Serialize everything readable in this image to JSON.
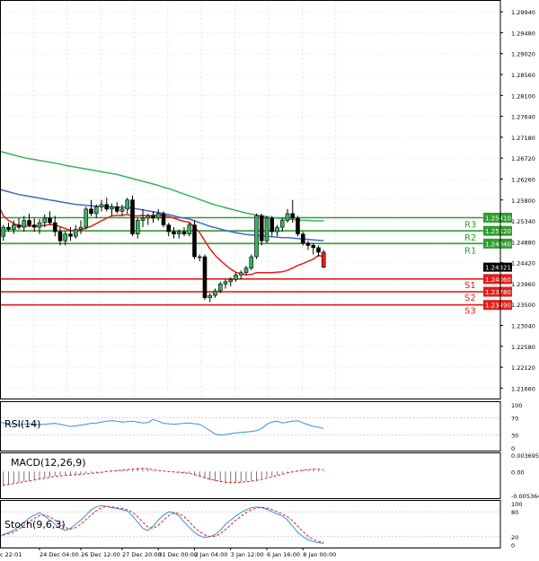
{
  "chart_data": {
    "type": "candlestick",
    "symbol_timeframe": "H4",
    "price_axis": {
      "range": [
        1.2143,
        1.302
      ],
      "ticks": [
        "1.29940",
        "1.29480",
        "1.29020",
        "1.28560",
        "1.28100",
        "1.27640",
        "1.27180",
        "1.26720",
        "1.26260",
        "1.25800",
        "1.25340",
        "1.24880",
        "1.24420",
        "1.23960",
        "1.23500",
        "1.23040",
        "1.22580",
        "1.22120",
        "1.21660"
      ]
    },
    "current_price": "1.24321",
    "levels": [
      {
        "name": "R3",
        "value": 1.2541,
        "label": "1.25410",
        "color": "#2e9e2e"
      },
      {
        "name": "R2",
        "value": 1.2512,
        "label": "1.25120",
        "color": "#2e9e2e"
      },
      {
        "name": "R1",
        "value": 1.2484,
        "label": "1.24840",
        "color": "#2e9e2e"
      },
      {
        "name": "S1",
        "value": 1.2406,
        "label": "1.24060",
        "color": "#e0201b"
      },
      {
        "name": "S2",
        "value": 1.2378,
        "label": "1.23780",
        "color": "#e0201b"
      },
      {
        "name": "S3",
        "value": 1.2349,
        "label": "1.23490",
        "color": "#e0201b"
      }
    ],
    "candles": [
      [
        1.2565,
        1.2568,
        1.2495,
        1.25
      ],
      [
        1.25,
        1.2525,
        1.249,
        1.252
      ],
      [
        1.252,
        1.253,
        1.251,
        1.2515
      ],
      [
        1.2515,
        1.2535,
        1.2505,
        1.2525
      ],
      [
        1.2525,
        1.254,
        1.2515,
        1.252
      ],
      [
        1.252,
        1.2545,
        1.251,
        1.2535
      ],
      [
        1.2535,
        1.255,
        1.252,
        1.2525
      ],
      [
        1.2525,
        1.254,
        1.251,
        1.252
      ],
      [
        1.252,
        1.2538,
        1.2505,
        1.253
      ],
      [
        1.253,
        1.2548,
        1.252,
        1.254
      ],
      [
        1.254,
        1.2555,
        1.2525,
        1.253
      ],
      [
        1.253,
        1.2545,
        1.25,
        1.251
      ],
      [
        1.251,
        1.252,
        1.248,
        1.249
      ],
      [
        1.249,
        1.2512,
        1.248,
        1.2505
      ],
      [
        1.2505,
        1.252,
        1.249,
        1.25
      ],
      [
        1.25,
        1.2525,
        1.2495,
        1.2515
      ],
      [
        1.2515,
        1.2535,
        1.2505,
        1.252
      ],
      [
        1.252,
        1.2565,
        1.2515,
        1.256
      ],
      [
        1.256,
        1.258,
        1.2545,
        1.255
      ],
      [
        1.255,
        1.257,
        1.254,
        1.2565
      ],
      [
        1.2565,
        1.258,
        1.2555,
        1.257
      ],
      [
        1.257,
        1.2585,
        1.2555,
        1.256
      ],
      [
        1.256,
        1.2572,
        1.2545,
        1.2565
      ],
      [
        1.2565,
        1.2575,
        1.255,
        1.2555
      ],
      [
        1.2555,
        1.257,
        1.2545,
        1.256
      ],
      [
        1.256,
        1.2585,
        1.255,
        1.258
      ],
      [
        1.258,
        1.259,
        1.25,
        1.2505
      ],
      [
        1.2505,
        1.254,
        1.2495,
        1.2535
      ],
      [
        1.2535,
        1.256,
        1.252,
        1.254
      ],
      [
        1.254,
        1.255,
        1.2525,
        1.2545
      ],
      [
        1.2545,
        1.2555,
        1.253,
        1.254
      ],
      [
        1.254,
        1.256,
        1.2535,
        1.255
      ],
      [
        1.255,
        1.2555,
        1.252,
        1.2525
      ],
      [
        1.2525,
        1.253,
        1.25,
        1.251
      ],
      [
        1.251,
        1.252,
        1.2495,
        1.2505
      ],
      [
        1.2505,
        1.2515,
        1.2495,
        1.251
      ],
      [
        1.251,
        1.252,
        1.25,
        1.2505
      ],
      [
        1.2505,
        1.253,
        1.25,
        1.2525
      ],
      [
        1.2525,
        1.2535,
        1.245,
        1.2455
      ],
      [
        1.2455,
        1.246,
        1.2445,
        1.2455
      ],
      [
        1.2455,
        1.246,
        1.236,
        1.2365
      ],
      [
        1.2365,
        1.2375,
        1.2355,
        1.237
      ],
      [
        1.237,
        1.2385,
        1.2365,
        1.238
      ],
      [
        1.238,
        1.24,
        1.2375,
        1.2395
      ],
      [
        1.2395,
        1.2405,
        1.2385,
        1.24
      ],
      [
        1.24,
        1.241,
        1.239,
        1.2405
      ],
      [
        1.2405,
        1.242,
        1.24,
        1.2415
      ],
      [
        1.2415,
        1.2425,
        1.2405,
        1.242
      ],
      [
        1.242,
        1.2435,
        1.2415,
        1.243
      ],
      [
        1.243,
        1.246,
        1.2425,
        1.2455
      ],
      [
        1.2455,
        1.255,
        1.245,
        1.2545
      ],
      [
        1.2545,
        1.255,
        1.248,
        1.249
      ],
      [
        1.249,
        1.2545,
        1.2485,
        1.254
      ],
      [
        1.254,
        1.2545,
        1.25,
        1.251
      ],
      [
        1.251,
        1.2525,
        1.25,
        1.252
      ],
      [
        1.252,
        1.254,
        1.251,
        1.2535
      ],
      [
        1.2535,
        1.256,
        1.253,
        1.255
      ],
      [
        1.255,
        1.258,
        1.253,
        1.254
      ],
      [
        1.254,
        1.2545,
        1.25,
        1.2505
      ],
      [
        1.2505,
        1.251,
        1.248,
        1.2485
      ],
      [
        1.2485,
        1.249,
        1.247,
        1.248
      ],
      [
        1.248,
        1.2485,
        1.246,
        1.2475
      ],
      [
        1.2475,
        1.248,
        1.2455,
        1.2465
      ],
      [
        1.2465,
        1.247,
        1.243,
        1.2432
      ]
    ],
    "moving_averages": [
      {
        "name": "MA fast",
        "color": "#e0201b",
        "values": [
          1.257,
          1.2545,
          1.2535,
          1.2528,
          1.2524,
          1.2522,
          1.2523,
          1.2522,
          1.2523,
          1.2524,
          1.2526,
          1.2525,
          1.2521,
          1.2517,
          1.2513,
          1.2513,
          1.2514,
          1.2518,
          1.2522,
          1.2528,
          1.2534,
          1.254,
          1.2545,
          1.2546,
          1.2546,
          1.2548,
          1.2545,
          1.2545,
          1.2546,
          1.2545,
          1.2546,
          1.2547,
          1.2546,
          1.2544,
          1.254,
          1.2536,
          1.2533,
          1.2531,
          1.252,
          1.2508,
          1.249,
          1.2472,
          1.2458,
          1.2447,
          1.2437,
          1.2428,
          1.2421,
          1.2417,
          1.2415,
          1.2416,
          1.242,
          1.242,
          1.242,
          1.242,
          1.2421,
          1.2422,
          1.2425,
          1.243,
          1.2436,
          1.244,
          1.2445,
          1.245,
          1.2458,
          1.2455
        ]
      },
      {
        "name": "MA medium",
        "color": "#4169c8",
        "values": [
          1.2605,
          1.2601,
          1.2598,
          1.2595,
          1.2592,
          1.259,
          1.2588,
          1.2586,
          1.2584,
          1.2582,
          1.258,
          1.2578,
          1.2576,
          1.2574,
          1.2572,
          1.257,
          1.2569,
          1.2568,
          1.2567,
          1.2566,
          1.2566,
          1.2565,
          1.2565,
          1.2564,
          1.2564,
          1.2564,
          1.2562,
          1.256,
          1.2558,
          1.2556,
          1.2554,
          1.2552,
          1.255,
          1.2548,
          1.2545,
          1.2542,
          1.254,
          1.2538,
          1.2534,
          1.253,
          1.2526,
          1.2522,
          1.2519,
          1.2516,
          1.2513,
          1.251,
          1.2508,
          1.2506,
          1.2504,
          1.2503,
          1.2502,
          1.2501,
          1.25,
          1.2499,
          1.2498,
          1.2497,
          1.2497,
          1.2496,
          1.2495,
          1.2494,
          1.2493,
          1.2492,
          1.2491,
          1.249
        ]
      },
      {
        "name": "MA slow",
        "color": "#3cb060",
        "values": [
          1.2688,
          1.2685,
          1.2682,
          1.2679,
          1.2676,
          1.2673,
          1.2671,
          1.2669,
          1.2667,
          1.2665,
          1.2663,
          1.2661,
          1.2659,
          1.2656,
          1.2654,
          1.2652,
          1.265,
          1.2648,
          1.2646,
          1.2644,
          1.2642,
          1.264,
          1.2638,
          1.2636,
          1.2633,
          1.263,
          1.2627,
          1.2624,
          1.2621,
          1.2618,
          1.2615,
          1.2612,
          1.2608,
          1.2605,
          1.2601,
          1.2597,
          1.2593,
          1.2589,
          1.2585,
          1.2581,
          1.2577,
          1.2573,
          1.2569,
          1.2566,
          1.2563,
          1.256,
          1.2557,
          1.2554,
          1.2551,
          1.2549,
          1.2547,
          1.2545,
          1.2543,
          1.2541,
          1.254,
          1.2539,
          1.2538,
          1.2537,
          1.2536,
          1.2535,
          1.2535,
          1.2534,
          1.2534,
          1.2534
        ]
      }
    ],
    "rsi": {
      "label": "RSI(14)",
      "range": [
        0,
        100
      ],
      "ticks": [
        "100",
        "70",
        "30",
        "0"
      ],
      "values": [
        60,
        58,
        56,
        55,
        54,
        55,
        56,
        55,
        54,
        55,
        56,
        57,
        55,
        52,
        50,
        51,
        53,
        55,
        57,
        58,
        60,
        62,
        63,
        62,
        60,
        61,
        62,
        60,
        58,
        59,
        66,
        62,
        57,
        56,
        55,
        56,
        57,
        58,
        56,
        55,
        48,
        40,
        32,
        30,
        31,
        33,
        35,
        36,
        37,
        38,
        40,
        45,
        55,
        60,
        62,
        58,
        60,
        62,
        63,
        58,
        54,
        50,
        48,
        45
      ]
    },
    "macd": {
      "label": "MACD(12,26,9)",
      "ticks": [
        "0.003695",
        "0.00",
        "-0.005364"
      ],
      "range": [
        -0.0056,
        0.0039
      ],
      "histogram": [
        -0.0032,
        -0.003,
        -0.0028,
        -0.0026,
        -0.0024,
        -0.0022,
        -0.002,
        -0.0018,
        -0.0016,
        -0.0014,
        -0.0012,
        -0.001,
        -0.0009,
        -0.0008,
        -0.0007,
        -0.0006,
        -0.0005,
        -0.0004,
        -0.0003,
        -0.0002,
        -0.0001,
        0.0001,
        0.0002,
        0.0003,
        0.0004,
        0.0005,
        0.0006,
        0.0008,
        0.0008,
        0.0006,
        0.0002,
        0.0,
        0.0,
        0.0,
        -0.0001,
        -0.0002,
        -0.0003,
        -0.0004,
        -0.0008,
        -0.0012,
        -0.0016,
        -0.002,
        -0.0022,
        -0.0024,
        -0.0025,
        -0.0025,
        -0.0024,
        -0.0023,
        -0.0022,
        -0.0021,
        -0.0019,
        -0.0016,
        -0.0013,
        -0.001,
        -0.0007,
        -0.0004,
        -0.0002,
        0.0001,
        0.0003,
        0.0004,
        0.0004,
        0.0005,
        0.0004,
        0.0002
      ],
      "signal": [
        -0.0033,
        -0.0031,
        -0.0029,
        -0.0027,
        -0.0025,
        -0.0023,
        -0.0021,
        -0.0019,
        -0.0017,
        -0.0015,
        -0.0013,
        -0.0011,
        -0.001,
        -0.0009,
        -0.0008,
        -0.0007,
        -0.0006,
        -0.0005,
        -0.0004,
        -0.0003,
        -0.0002,
        0.0,
        0.0001,
        0.0002,
        0.0003,
        0.0004,
        0.0005,
        0.0006,
        0.0007,
        0.0006,
        0.0004,
        0.0002,
        0.0001,
        0.0,
        -0.0001,
        -0.0002,
        -0.0003,
        -0.0004,
        -0.0007,
        -0.001,
        -0.0014,
        -0.0017,
        -0.002,
        -0.0022,
        -0.0024,
        -0.0025,
        -0.0025,
        -0.0024,
        -0.0023,
        -0.0022,
        -0.002,
        -0.0018,
        -0.0015,
        -0.0012,
        -0.0009,
        -0.0006,
        -0.0003,
        -0.0001,
        0.0001,
        0.0003,
        0.0004,
        0.0005,
        0.0005,
        0.0004
      ]
    },
    "stoch": {
      "label": "Stoch(9,6,3)",
      "range": [
        0,
        100
      ],
      "ticks": [
        "100",
        "80",
        "20",
        "0"
      ],
      "main": [
        20,
        25,
        30,
        35,
        45,
        55,
        65,
        72,
        78,
        70,
        60,
        50,
        40,
        35,
        40,
        50,
        60,
        72,
        85,
        92,
        95,
        93,
        90,
        88,
        85,
        82,
        70,
        55,
        40,
        35,
        45,
        60,
        72,
        80,
        78,
        70,
        55,
        42,
        30,
        22,
        18,
        20,
        25,
        35,
        50,
        60,
        70,
        78,
        85,
        90,
        92,
        90,
        86,
        80,
        75,
        70,
        60,
        45,
        30,
        20,
        12,
        8,
        5,
        4
      ],
      "signal": [
        22,
        24,
        27,
        31,
        38,
        47,
        56,
        64,
        71,
        72,
        68,
        60,
        50,
        42,
        38,
        42,
        50,
        61,
        72,
        83,
        90,
        93,
        92,
        90,
        88,
        85,
        79,
        68,
        55,
        43,
        40,
        47,
        59,
        71,
        77,
        76,
        68,
        56,
        42,
        32,
        24,
        20,
        21,
        27,
        37,
        48,
        60,
        69,
        78,
        85,
        89,
        91,
        89,
        85,
        80,
        75,
        68,
        58,
        45,
        32,
        21,
        13,
        8,
        6
      ],
      "levels": [
        80,
        20
      ]
    },
    "time_labels": [
      "c 22:01",
      "24 Dec 04:00",
      "26 Dec 12:00",
      "27 Dec 20:00",
      "31 Dec 00:00",
      "2 Jan 04:00",
      "3 Jan 12:00",
      "6 Jan 16:00",
      "8 Jan 00:00"
    ],
    "time_label_index": [
      0,
      8,
      16,
      24,
      31,
      38,
      45,
      52,
      59
    ]
  }
}
